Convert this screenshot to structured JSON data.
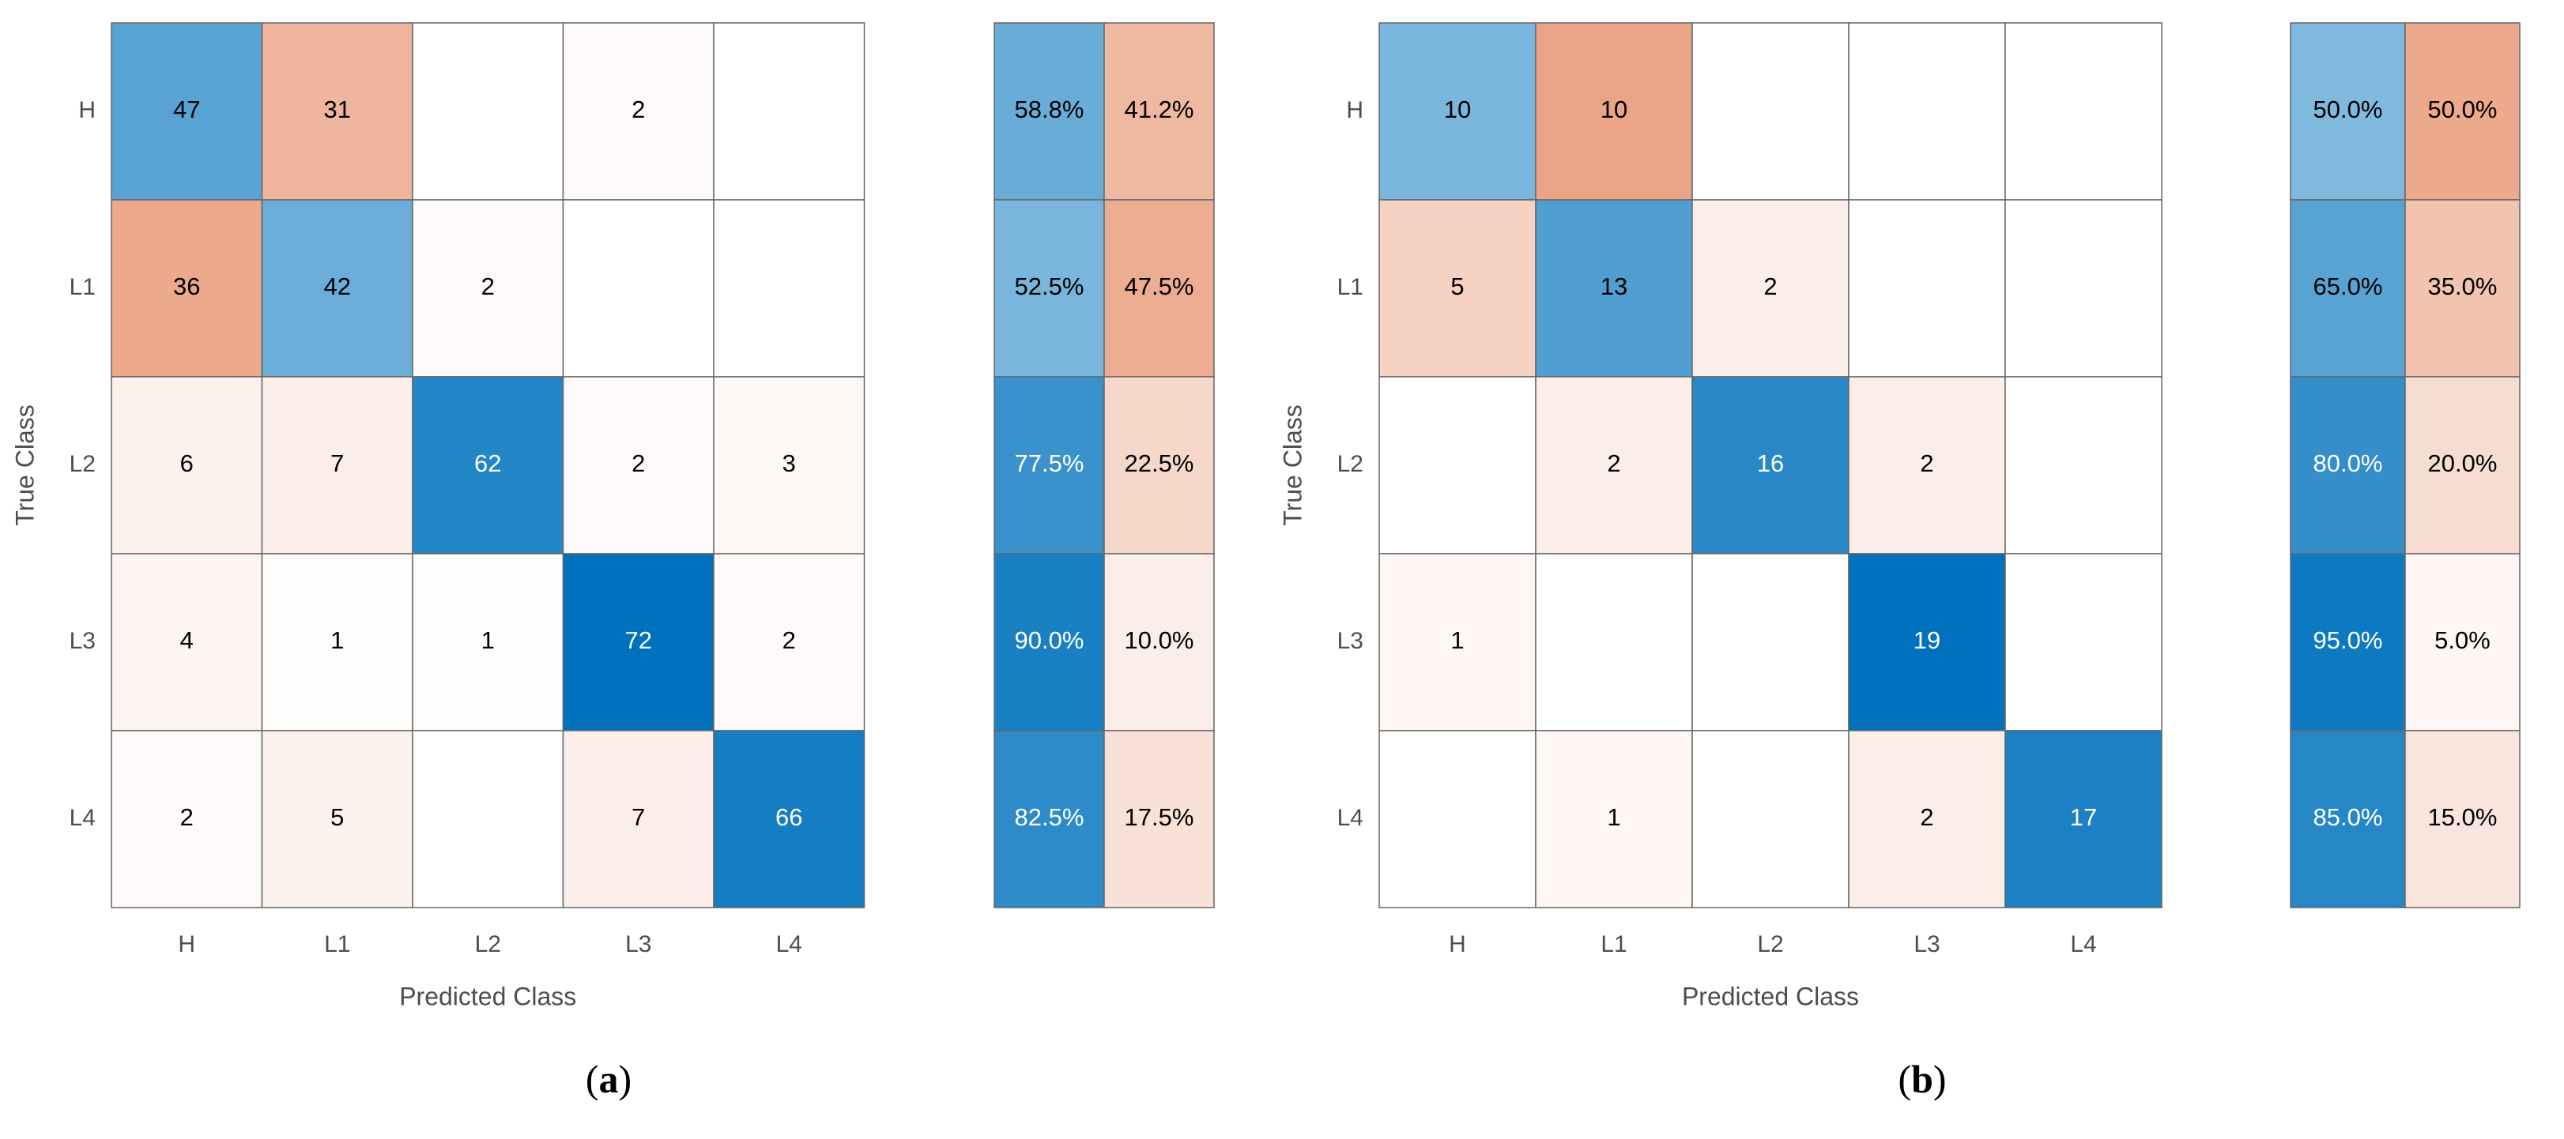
{
  "chart_data": [
    {
      "type": "confusion",
      "caption": "(a)",
      "x_label": "Predicted Class",
      "y_label": "True Class",
      "categories": [
        "H",
        "L1",
        "L2",
        "L3",
        "L4"
      ],
      "diagonal_color": "#0072bd",
      "off_diagonal_color": "#d95319",
      "values": [
        [
          47,
          31,
          null,
          2,
          null
        ],
        [
          36,
          42,
          2,
          null,
          null
        ],
        [
          6,
          7,
          62,
          2,
          3
        ],
        [
          4,
          1,
          1,
          72,
          2
        ],
        [
          2,
          5,
          null,
          7,
          66
        ]
      ],
      "summary_values": [
        [
          58.8,
          41.2
        ],
        [
          52.5,
          47.5
        ],
        [
          77.5,
          22.5
        ],
        [
          90,
          10
        ],
        [
          82.5,
          17.5
        ]
      ],
      "summary_labels": [
        [
          "58.8%",
          "41.2%"
        ],
        [
          "52.5%",
          "47.5%"
        ],
        [
          "77.5%",
          "22.5%"
        ],
        [
          "90.0%",
          "10.0%"
        ],
        [
          "82.5%",
          "17.5%"
        ]
      ]
    },
    {
      "type": "confusion",
      "caption": "(b)",
      "x_label": "Predicted Class",
      "y_label": "True Class",
      "categories": [
        "H",
        "L1",
        "L2",
        "L3",
        "L4"
      ],
      "diagonal_color": "#0072bd",
      "off_diagonal_color": "#d95319",
      "values": [
        [
          10,
          10,
          null,
          null,
          null
        ],
        [
          5,
          13,
          2,
          null,
          null
        ],
        [
          null,
          2,
          16,
          2,
          null
        ],
        [
          1,
          null,
          null,
          19,
          null
        ],
        [
          null,
          1,
          null,
          2,
          17
        ]
      ],
      "summary_values": [
        [
          50,
          50
        ],
        [
          65,
          35
        ],
        [
          80,
          20
        ],
        [
          95,
          5
        ],
        [
          85,
          15
        ]
      ],
      "summary_labels": [
        [
          "50.0%",
          "50.0%"
        ],
        [
          "65.0%",
          "35.0%"
        ],
        [
          "80.0%",
          "20.0%"
        ],
        [
          "95.0%",
          "5.0%"
        ],
        [
          "85.0%",
          "15.0%"
        ]
      ]
    }
  ]
}
